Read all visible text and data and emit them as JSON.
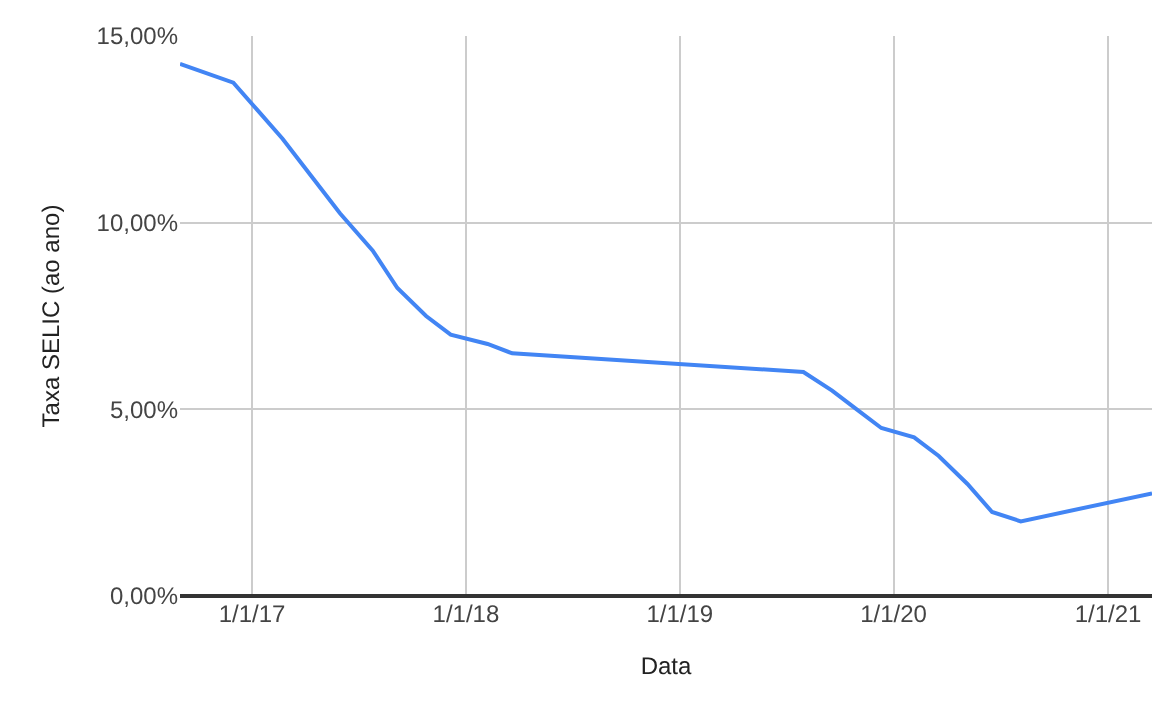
{
  "chart_data": {
    "type": "line",
    "xlabel": "Data",
    "ylabel": "Taxa SELIC (ao ano)",
    "x": [
      "2016-08-31",
      "2016-11-30",
      "2017-01-11",
      "2017-02-22",
      "2017-04-12",
      "2017-05-31",
      "2017-07-26",
      "2017-09-06",
      "2017-10-25",
      "2017-12-06",
      "2018-02-07",
      "2018-03-21",
      "2019-07-31",
      "2019-09-18",
      "2019-10-30",
      "2019-12-11",
      "2020-02-05",
      "2020-03-18",
      "2020-05-06",
      "2020-06-17",
      "2020-08-05",
      "2021-03-17"
    ],
    "series": [
      {
        "color": "#4285f4",
        "values": [
          14.25,
          13.75,
          13.0,
          12.25,
          11.25,
          10.25,
          9.25,
          8.25,
          7.5,
          7.0,
          6.75,
          6.5,
          6.0,
          5.5,
          5.0,
          4.5,
          4.25,
          3.75,
          3.0,
          2.25,
          2.0,
          2.75
        ]
      }
    ],
    "xlim": [
      "2016-08-31",
      "2021-03-17"
    ],
    "xticks": [
      {
        "value": "2017-01-01",
        "label": "1/1/17"
      },
      {
        "value": "2018-01-01",
        "label": "1/1/18"
      },
      {
        "value": "2019-01-01",
        "label": "1/1/19"
      },
      {
        "value": "2020-01-01",
        "label": "1/1/20"
      },
      {
        "value": "2021-01-01",
        "label": "1/1/21"
      }
    ],
    "ylim": [
      0,
      15
    ],
    "yticks": [
      {
        "value": 0,
        "label": "0,00%"
      },
      {
        "value": 5,
        "label": "5,00%"
      },
      {
        "value": 10,
        "label": "10,00%"
      },
      {
        "value": 15,
        "label": "15,00%"
      }
    ],
    "grid": true,
    "legend": false,
    "marker": "none",
    "line_style": "solid"
  }
}
